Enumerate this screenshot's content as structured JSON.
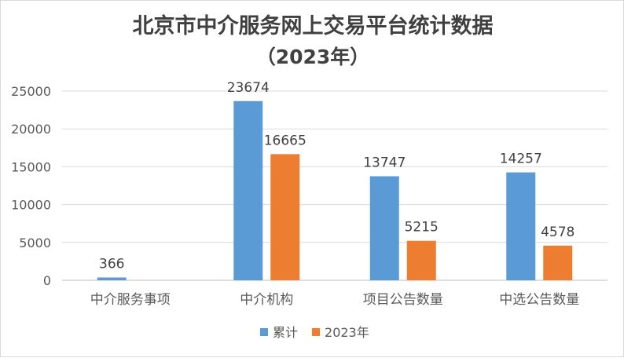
{
  "chart_data": {
    "type": "bar",
    "title": "北京市中介服务网上交易平台统计数据",
    "subtitle": "（2023年）",
    "categories": [
      "中介服务事项",
      "中介机构",
      "项目公告数量",
      "中选公告数量"
    ],
    "series": [
      {
        "name": "累计",
        "values": [
          366,
          23674,
          13747,
          14257
        ],
        "color": "#5b9bd5"
      },
      {
        "name": "2023年",
        "values": [
          null,
          16665,
          5215,
          4578
        ],
        "color": "#ed7d31"
      }
    ],
    "ylim": [
      0,
      25000
    ],
    "yticks": [
      0,
      5000,
      10000,
      15000,
      20000,
      25000
    ],
    "grid": true,
    "legend": "bottom"
  }
}
